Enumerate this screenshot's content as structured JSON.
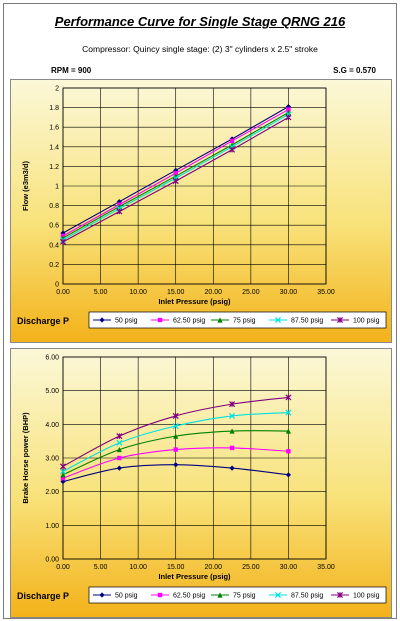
{
  "header": {
    "title": "Performance Curve for Single Stage QRNG 216",
    "subtitle": "Compressor: Quincy single stage: (2) 3\" cylinders x 2.5\" stroke",
    "rpm": "RPM = 900",
    "sg": "S.G = 0.570"
  },
  "colors": {
    "background_top": "#fbf8d8",
    "background_bottom": "#f3b21a",
    "gridline": "#000000"
  },
  "legend_title": "Discharge P",
  "chart_data": [
    {
      "type": "line",
      "title": "",
      "xlabel": "Inlet Pressure (psig)",
      "ylabel": "Flow (e3m3/d)",
      "xlim": [
        0,
        35
      ],
      "ylim": [
        0,
        2
      ],
      "xticks": [
        "0.00",
        "5.00",
        "10.00",
        "15.00",
        "20.00",
        "25.00",
        "30.00",
        "35.00"
      ],
      "yticks": [
        "0",
        "0.2",
        "0.4",
        "0.6",
        "0.8",
        "1",
        "1.2",
        "1.4",
        "1.6",
        "1.8",
        "2"
      ],
      "x": [
        0,
        7.5,
        15,
        22.5,
        30
      ],
      "grid": true,
      "legend_position": "bottom",
      "series": [
        {
          "name": "50 psig",
          "color": "#000080",
          "marker": "diamond",
          "values": [
            0.52,
            0.84,
            1.16,
            1.48,
            1.81
          ]
        },
        {
          "name": "62.50 psig",
          "color": "#ff00ff",
          "marker": "square",
          "values": [
            0.49,
            0.81,
            1.13,
            1.46,
            1.78
          ]
        },
        {
          "name": "75 psig",
          "color": "#008000",
          "marker": "triangle",
          "values": [
            0.47,
            0.79,
            1.1,
            1.42,
            1.75
          ]
        },
        {
          "name": "87.50 psig",
          "color": "#00e0e0",
          "marker": "cross",
          "values": [
            0.45,
            0.77,
            1.08,
            1.4,
            1.73
          ]
        },
        {
          "name": "100 psig",
          "color": "#800080",
          "marker": "x",
          "values": [
            0.43,
            0.74,
            1.05,
            1.37,
            1.7
          ]
        }
      ]
    },
    {
      "type": "line",
      "title": "",
      "xlabel": "Inlet Pressure (psig)",
      "ylabel": "Brake Horse power (BHP)",
      "xlim": [
        0,
        35
      ],
      "ylim": [
        0,
        6
      ],
      "xticks": [
        "0.00",
        "5.00",
        "10.00",
        "15.00",
        "20.00",
        "25.00",
        "30.00",
        "35.00"
      ],
      "yticks": [
        "0.00",
        "1.00",
        "2.00",
        "3.00",
        "4.00",
        "5.00",
        "6.00"
      ],
      "x": [
        0,
        7.5,
        15,
        22.5,
        30
      ],
      "grid": true,
      "legend_position": "bottom",
      "series": [
        {
          "name": "50 psig",
          "color": "#000080",
          "marker": "diamond",
          "values": [
            2.3,
            2.7,
            2.8,
            2.7,
            2.5
          ]
        },
        {
          "name": "62.50 psig",
          "color": "#ff00ff",
          "marker": "square",
          "values": [
            2.4,
            3.0,
            3.25,
            3.3,
            3.2
          ]
        },
        {
          "name": "75 psig",
          "color": "#008000",
          "marker": "triangle",
          "values": [
            2.5,
            3.25,
            3.65,
            3.8,
            3.8
          ]
        },
        {
          "name": "87.50 psig",
          "color": "#00e0e0",
          "marker": "cross",
          "values": [
            2.6,
            3.45,
            3.95,
            4.25,
            4.35
          ]
        },
        {
          "name": "100 psig",
          "color": "#800080",
          "marker": "x",
          "values": [
            2.75,
            3.65,
            4.25,
            4.6,
            4.8
          ]
        }
      ]
    }
  ]
}
